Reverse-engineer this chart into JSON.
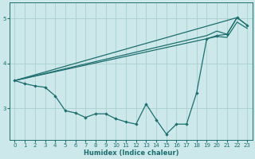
{
  "xlabel": "Humidex (Indice chaleur)",
  "bg_color": "#cce8ea",
  "line_color": "#1e6e6e",
  "grid_color": "#aacece",
  "ylim": [
    2.3,
    5.35
  ],
  "xlim": [
    -0.5,
    23.5
  ],
  "yticks": [
    3,
    4,
    5
  ],
  "xticks": [
    0,
    1,
    2,
    3,
    4,
    5,
    6,
    7,
    8,
    9,
    10,
    11,
    12,
    13,
    14,
    15,
    16,
    17,
    18,
    19,
    20,
    21,
    22,
    23
  ],
  "straight_line_x": [
    0,
    22
  ],
  "straight_line_y": [
    3.62,
    5.02
  ],
  "upper_fan_x": [
    0,
    19,
    20,
    21,
    22,
    23
  ],
  "upper_fan_y": [
    3.62,
    4.62,
    4.72,
    4.65,
    5.02,
    4.85
  ],
  "lower_fan_x": [
    0,
    19,
    20,
    21,
    22,
    23
  ],
  "lower_fan_y": [
    3.62,
    4.55,
    4.6,
    4.58,
    4.92,
    4.78
  ],
  "zigzag_x": [
    0,
    1,
    2,
    3,
    4,
    5,
    6,
    7,
    8,
    9,
    10,
    11,
    12,
    13,
    14,
    15,
    16,
    17,
    18,
    19,
    20,
    21,
    22,
    23
  ],
  "zigzag_y": [
    3.62,
    3.55,
    3.5,
    3.47,
    3.28,
    2.95,
    2.9,
    2.8,
    2.88,
    2.88,
    2.77,
    2.7,
    2.65,
    3.1,
    2.75,
    2.43,
    2.65,
    2.65,
    3.35,
    4.55,
    4.62,
    4.65,
    5.02,
    4.85
  ]
}
